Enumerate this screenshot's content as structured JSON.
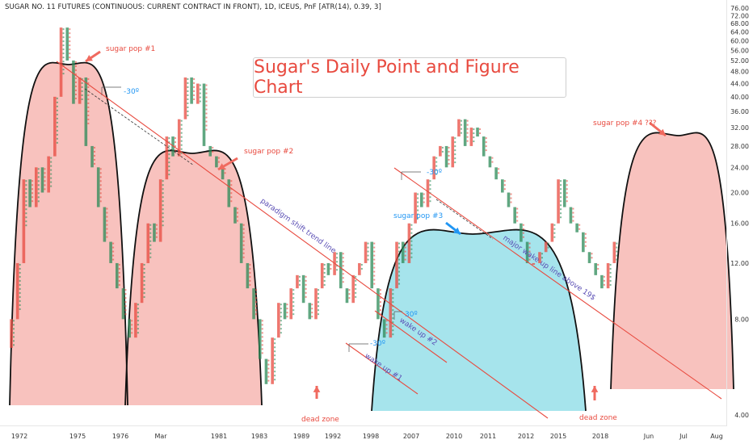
{
  "header": {
    "symbol_line": "SUGAR NO. 11 FUTURES (CONTINUOUS: CURRENT CONTRACT IN FRONT), 1D, ICEUS, PnF [ATR(14), 0.39, 3]"
  },
  "title": "Sugar's Daily Point and Figure Chart",
  "chart_data": {
    "type": "line",
    "y_axis": {
      "scale": "log",
      "ticks": [
        "76.00",
        "72.00",
        "68.00",
        "64.00",
        "60.00",
        "56.00",
        "52.00",
        "48.00",
        "44.00",
        "40.00",
        "36.00",
        "32.00",
        "28.00",
        "24.00",
        "20.00",
        "16.00",
        "12.00",
        "8.00",
        "4.00"
      ]
    },
    "x_axis": {
      "ticks": [
        "1972",
        "1975",
        "1976",
        "Mar",
        "1981",
        "1983",
        "1989",
        "1992",
        "1998",
        "2007",
        "2010",
        "2011",
        "2012",
        "2015",
        "2018",
        "Jun",
        "Jul",
        "Aug"
      ]
    },
    "series": [
      {
        "values": [
          6.5,
          8,
          12,
          22,
          18,
          24,
          20,
          26,
          40,
          66,
          52,
          38,
          46,
          28,
          24,
          18,
          14,
          12,
          10,
          8,
          7,
          9,
          12,
          16,
          14,
          22,
          30,
          26,
          34,
          46,
          38,
          44,
          28,
          26,
          24,
          22,
          18,
          16,
          12,
          10,
          8,
          6,
          5,
          7,
          9,
          8,
          10,
          11,
          9,
          8,
          10,
          12,
          11,
          13,
          10,
          9,
          11,
          12,
          14,
          10,
          8,
          7,
          10,
          14,
          12,
          16,
          20,
          18,
          22,
          26,
          28,
          24,
          30,
          34,
          28,
          32,
          30,
          26,
          24,
          22,
          20,
          18,
          16,
          14,
          12,
          12,
          13,
          14,
          16,
          22,
          18,
          16,
          15,
          13,
          12,
          11,
          10,
          12,
          14
        ]
      }
    ],
    "annotations": [
      {
        "text": "sugar pop #1",
        "color": "#e84a3f"
      },
      {
        "text": "sugar pop #2",
        "color": "#e84a3f"
      },
      {
        "text": "sugar pop #3",
        "color": "#2196f3"
      },
      {
        "text": "sugar pop #4 ???",
        "color": "#e84a3f"
      },
      {
        "text": "dead zone",
        "color": "#e84a3f"
      },
      {
        "text": "dead zone",
        "color": "#e84a3f"
      },
      {
        "text": "paradigm shift trend line",
        "color": "#5b4fb5"
      },
      {
        "text": "major wake up line above 19$",
        "color": "#5b4fb5"
      },
      {
        "text": "wake up #1",
        "color": "#5b4fb5"
      },
      {
        "text": "wake up #2",
        "color": "#5b4fb5"
      },
      {
        "text": "-30º",
        "color": "#2196f3"
      },
      {
        "text": "-30º",
        "color": "#2196f3"
      },
      {
        "text": "-30º",
        "color": "#2196f3"
      },
      {
        "text": "30º",
        "color": "#2196f3"
      }
    ]
  },
  "colors": {
    "pink_fill": "#f7b7b3",
    "cyan_fill": "#97dfe9",
    "trend_line": "#e84a3f",
    "x_mark": "#e84a3f",
    "o_mark": "#2b8a57"
  }
}
